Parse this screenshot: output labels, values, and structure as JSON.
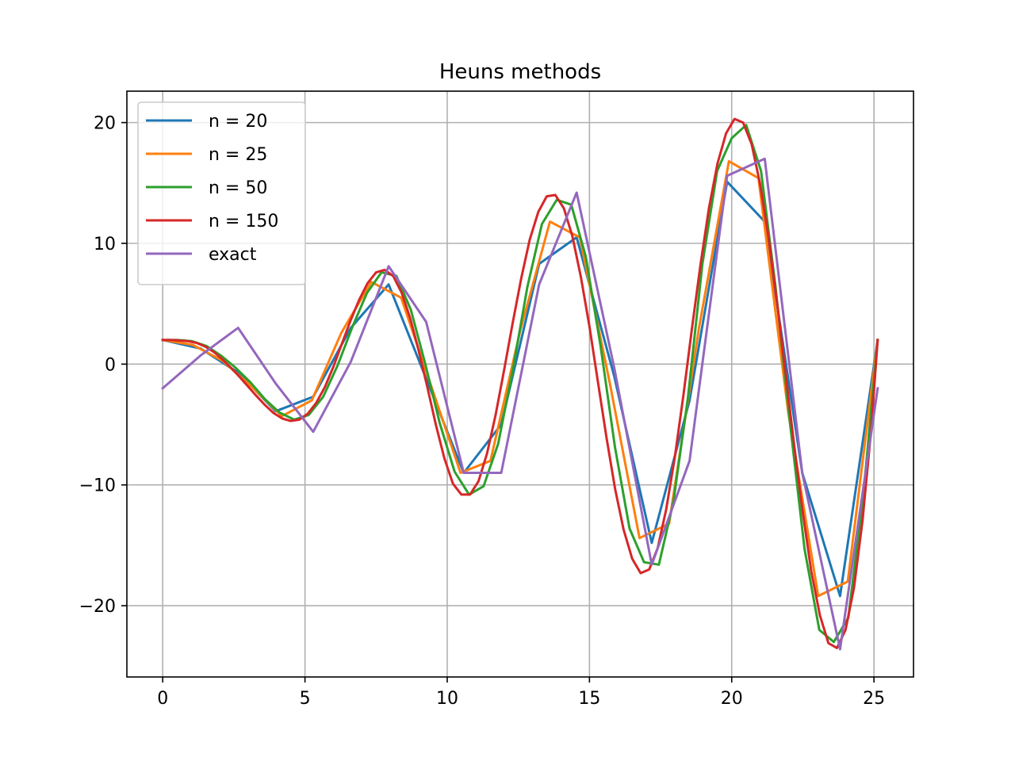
{
  "chart_data": {
    "type": "line",
    "title": "Heuns methods",
    "xlabel": "",
    "ylabel": "",
    "xlim": [
      -1.26,
      26.39
    ],
    "ylim": [
      -25.9,
      22.6
    ],
    "xticks": [
      0,
      5,
      10,
      15,
      20,
      25
    ],
    "yticks": [
      20,
      10,
      0,
      -10,
      -20
    ],
    "xtick_labels": [
      "0",
      "5",
      "10",
      "15",
      "20",
      "25"
    ],
    "ytick_labels": [
      "20",
      "10",
      "0",
      "−10",
      "−20"
    ],
    "grid": true,
    "legend_position": "upper-left",
    "series": [
      {
        "name": "n = 20",
        "color": "#1f77b4",
        "x": [
          0,
          1.33,
          2.65,
          3.97,
          5.29,
          6.61,
          7.94,
          9.26,
          10.58,
          11.9,
          13.23,
          14.55,
          15.87,
          17.19,
          18.52,
          19.84,
          21.16,
          22.48,
          23.81,
          25.13
        ],
        "y": [
          2.0,
          1.3,
          -0.7,
          -3.9,
          -2.7,
          3.0,
          6.6,
          -1.2,
          -9.0,
          -5.0,
          8.3,
          10.5,
          -1.0,
          -14.8,
          -3.0,
          15.1,
          11.8,
          -9.0,
          -19.2,
          2.0
        ]
      },
      {
        "name": "n = 25",
        "color": "#ff7f0e",
        "x": [
          0,
          1.05,
          2.09,
          3.14,
          4.19,
          5.24,
          6.28,
          7.33,
          8.38,
          9.42,
          10.47,
          11.52,
          12.57,
          13.61,
          14.66,
          15.71,
          16.76,
          17.8,
          18.85,
          19.9,
          20.94,
          21.99,
          23.04,
          24.08,
          25.13
        ],
        "y": [
          2.0,
          1.6,
          0.3,
          -1.9,
          -4.3,
          -3.0,
          2.6,
          6.8,
          5.5,
          -1.7,
          -9.0,
          -8.0,
          2.8,
          11.8,
          10.5,
          -1.5,
          -14.4,
          -13.2,
          3.0,
          16.8,
          15.4,
          -4.0,
          -19.2,
          -18.0,
          2.0
        ]
      },
      {
        "name": "n = 50",
        "color": "#2ca02c",
        "x": [
          0,
          0.51,
          1.03,
          1.54,
          2.05,
          2.56,
          3.08,
          3.59,
          4.1,
          4.62,
          5.13,
          5.64,
          6.15,
          6.67,
          7.18,
          7.69,
          8.21,
          8.72,
          9.23,
          9.74,
          10.26,
          10.77,
          11.28,
          11.79,
          12.31,
          12.82,
          13.33,
          13.85,
          14.36,
          14.87,
          15.39,
          15.9,
          16.41,
          16.92,
          17.44,
          17.95,
          18.46,
          18.97,
          19.49,
          20.0,
          20.51,
          21.03,
          21.54,
          22.05,
          22.56,
          23.08,
          23.59,
          24.1,
          24.62,
          25.13
        ],
        "y": [
          2.0,
          2.0,
          1.9,
          1.5,
          0.7,
          -0.3,
          -1.5,
          -2.9,
          -4.0,
          -4.6,
          -4.2,
          -2.7,
          -0.1,
          3.1,
          5.9,
          7.6,
          7.3,
          4.5,
          0.0,
          -4.9,
          -8.9,
          -10.8,
          -10.1,
          -6.6,
          -0.4,
          6.4,
          11.6,
          13.6,
          13.2,
          8.9,
          1.5,
          -6.9,
          -13.6,
          -16.4,
          -16.6,
          -11.4,
          -2.8,
          8.3,
          16.0,
          18.7,
          19.8,
          16.0,
          6.4,
          -4.9,
          -15.3,
          -22.0,
          -23.0,
          -21.0,
          -11.0,
          2.0
        ]
      },
      {
        "name": "n = 150",
        "color": "#d62728",
        "x": [
          0,
          0.3,
          0.6,
          0.9,
          1.2,
          1.5,
          1.8,
          2.1,
          2.4,
          2.7,
          3.0,
          3.3,
          3.6,
          3.9,
          4.2,
          4.5,
          4.8,
          5.1,
          5.4,
          5.7,
          6.0,
          6.3,
          6.6,
          6.9,
          7.2,
          7.5,
          7.8,
          8.1,
          8.4,
          8.7,
          9.0,
          9.3,
          9.6,
          9.9,
          10.2,
          10.5,
          10.8,
          11.1,
          11.4,
          11.7,
          12.0,
          12.3,
          12.6,
          12.9,
          13.2,
          13.5,
          13.8,
          14.1,
          14.4,
          14.7,
          15.0,
          15.3,
          15.6,
          15.9,
          16.2,
          16.5,
          16.8,
          17.1,
          17.4,
          17.7,
          18.0,
          18.3,
          18.6,
          18.9,
          19.2,
          19.5,
          19.8,
          20.1,
          20.4,
          20.7,
          21.0,
          21.3,
          21.6,
          21.9,
          22.2,
          22.5,
          22.8,
          23.1,
          23.4,
          23.7,
          24.0,
          24.3,
          24.6,
          24.9,
          25.13
        ],
        "y": [
          2.0,
          2.0,
          1.95,
          1.9,
          1.75,
          1.45,
          1.0,
          0.4,
          -0.3,
          -1.05,
          -1.85,
          -2.65,
          -3.4,
          -4.05,
          -4.5,
          -4.7,
          -4.6,
          -4.1,
          -3.2,
          -1.9,
          -0.2,
          1.7,
          3.6,
          5.3,
          6.7,
          7.6,
          7.8,
          7.3,
          5.9,
          3.8,
          1.1,
          -1.9,
          -5.0,
          -7.8,
          -9.9,
          -10.8,
          -10.8,
          -9.7,
          -7.4,
          -4.2,
          -0.5,
          3.4,
          7.1,
          10.3,
          12.6,
          13.9,
          14.0,
          12.9,
          10.6,
          7.2,
          3.1,
          -1.5,
          -6.1,
          -10.3,
          -13.7,
          -16.1,
          -17.3,
          -17.0,
          -15.2,
          -12.0,
          -7.7,
          -2.6,
          2.9,
          8.2,
          12.9,
          16.6,
          19.1,
          20.3,
          20.0,
          18.2,
          14.9,
          10.4,
          5.0,
          -0.9,
          -6.8,
          -12.3,
          -17.2,
          -20.8,
          -23.1,
          -23.5,
          -22.0,
          -18.5,
          -12.9,
          -5.5,
          2.0
        ]
      },
      {
        "name": "exact",
        "color": "#9467bd",
        "x": [
          0,
          1.32,
          2.65,
          3.97,
          5.29,
          6.61,
          7.94,
          9.26,
          10.58,
          11.9,
          13.23,
          14.55,
          15.87,
          17.19,
          18.52,
          19.84,
          21.16,
          22.48,
          23.81,
          25.13
        ],
        "y": [
          -2.0,
          0.7,
          3.0,
          -1.6,
          -5.6,
          0.2,
          8.1,
          3.5,
          -9.0,
          -9.0,
          6.6,
          14.2,
          -0.3,
          -16.6,
          -8.0,
          15.6,
          17.0,
          -9.0,
          -23.6,
          -2.0
        ]
      }
    ]
  }
}
